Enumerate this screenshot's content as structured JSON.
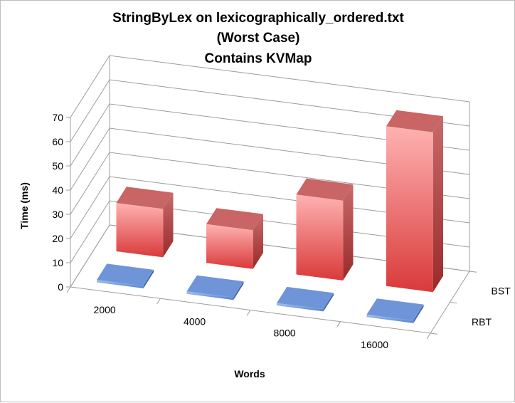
{
  "chart_data": {
    "type": "bar",
    "title": [
      "StringByLex on lexicographically_ordered.txt",
      "(Worst Case)",
      "Contains KVMap"
    ],
    "xlabel": "Words",
    "ylabel": "Time (ms)",
    "categories": [
      "2000",
      "4000",
      "8000",
      "16000"
    ],
    "series": [
      {
        "name": "BST",
        "values": [
          20,
          16,
          33,
          66
        ],
        "color": "#e0504f"
      },
      {
        "name": "RBT",
        "values": [
          1,
          1,
          1,
          1
        ],
        "color": "#5f8ad6"
      }
    ],
    "ylim": [
      0,
      70
    ],
    "yticks": [
      "0",
      "10",
      "20",
      "30",
      "40",
      "50",
      "60",
      "70"
    ],
    "grid": true
  }
}
